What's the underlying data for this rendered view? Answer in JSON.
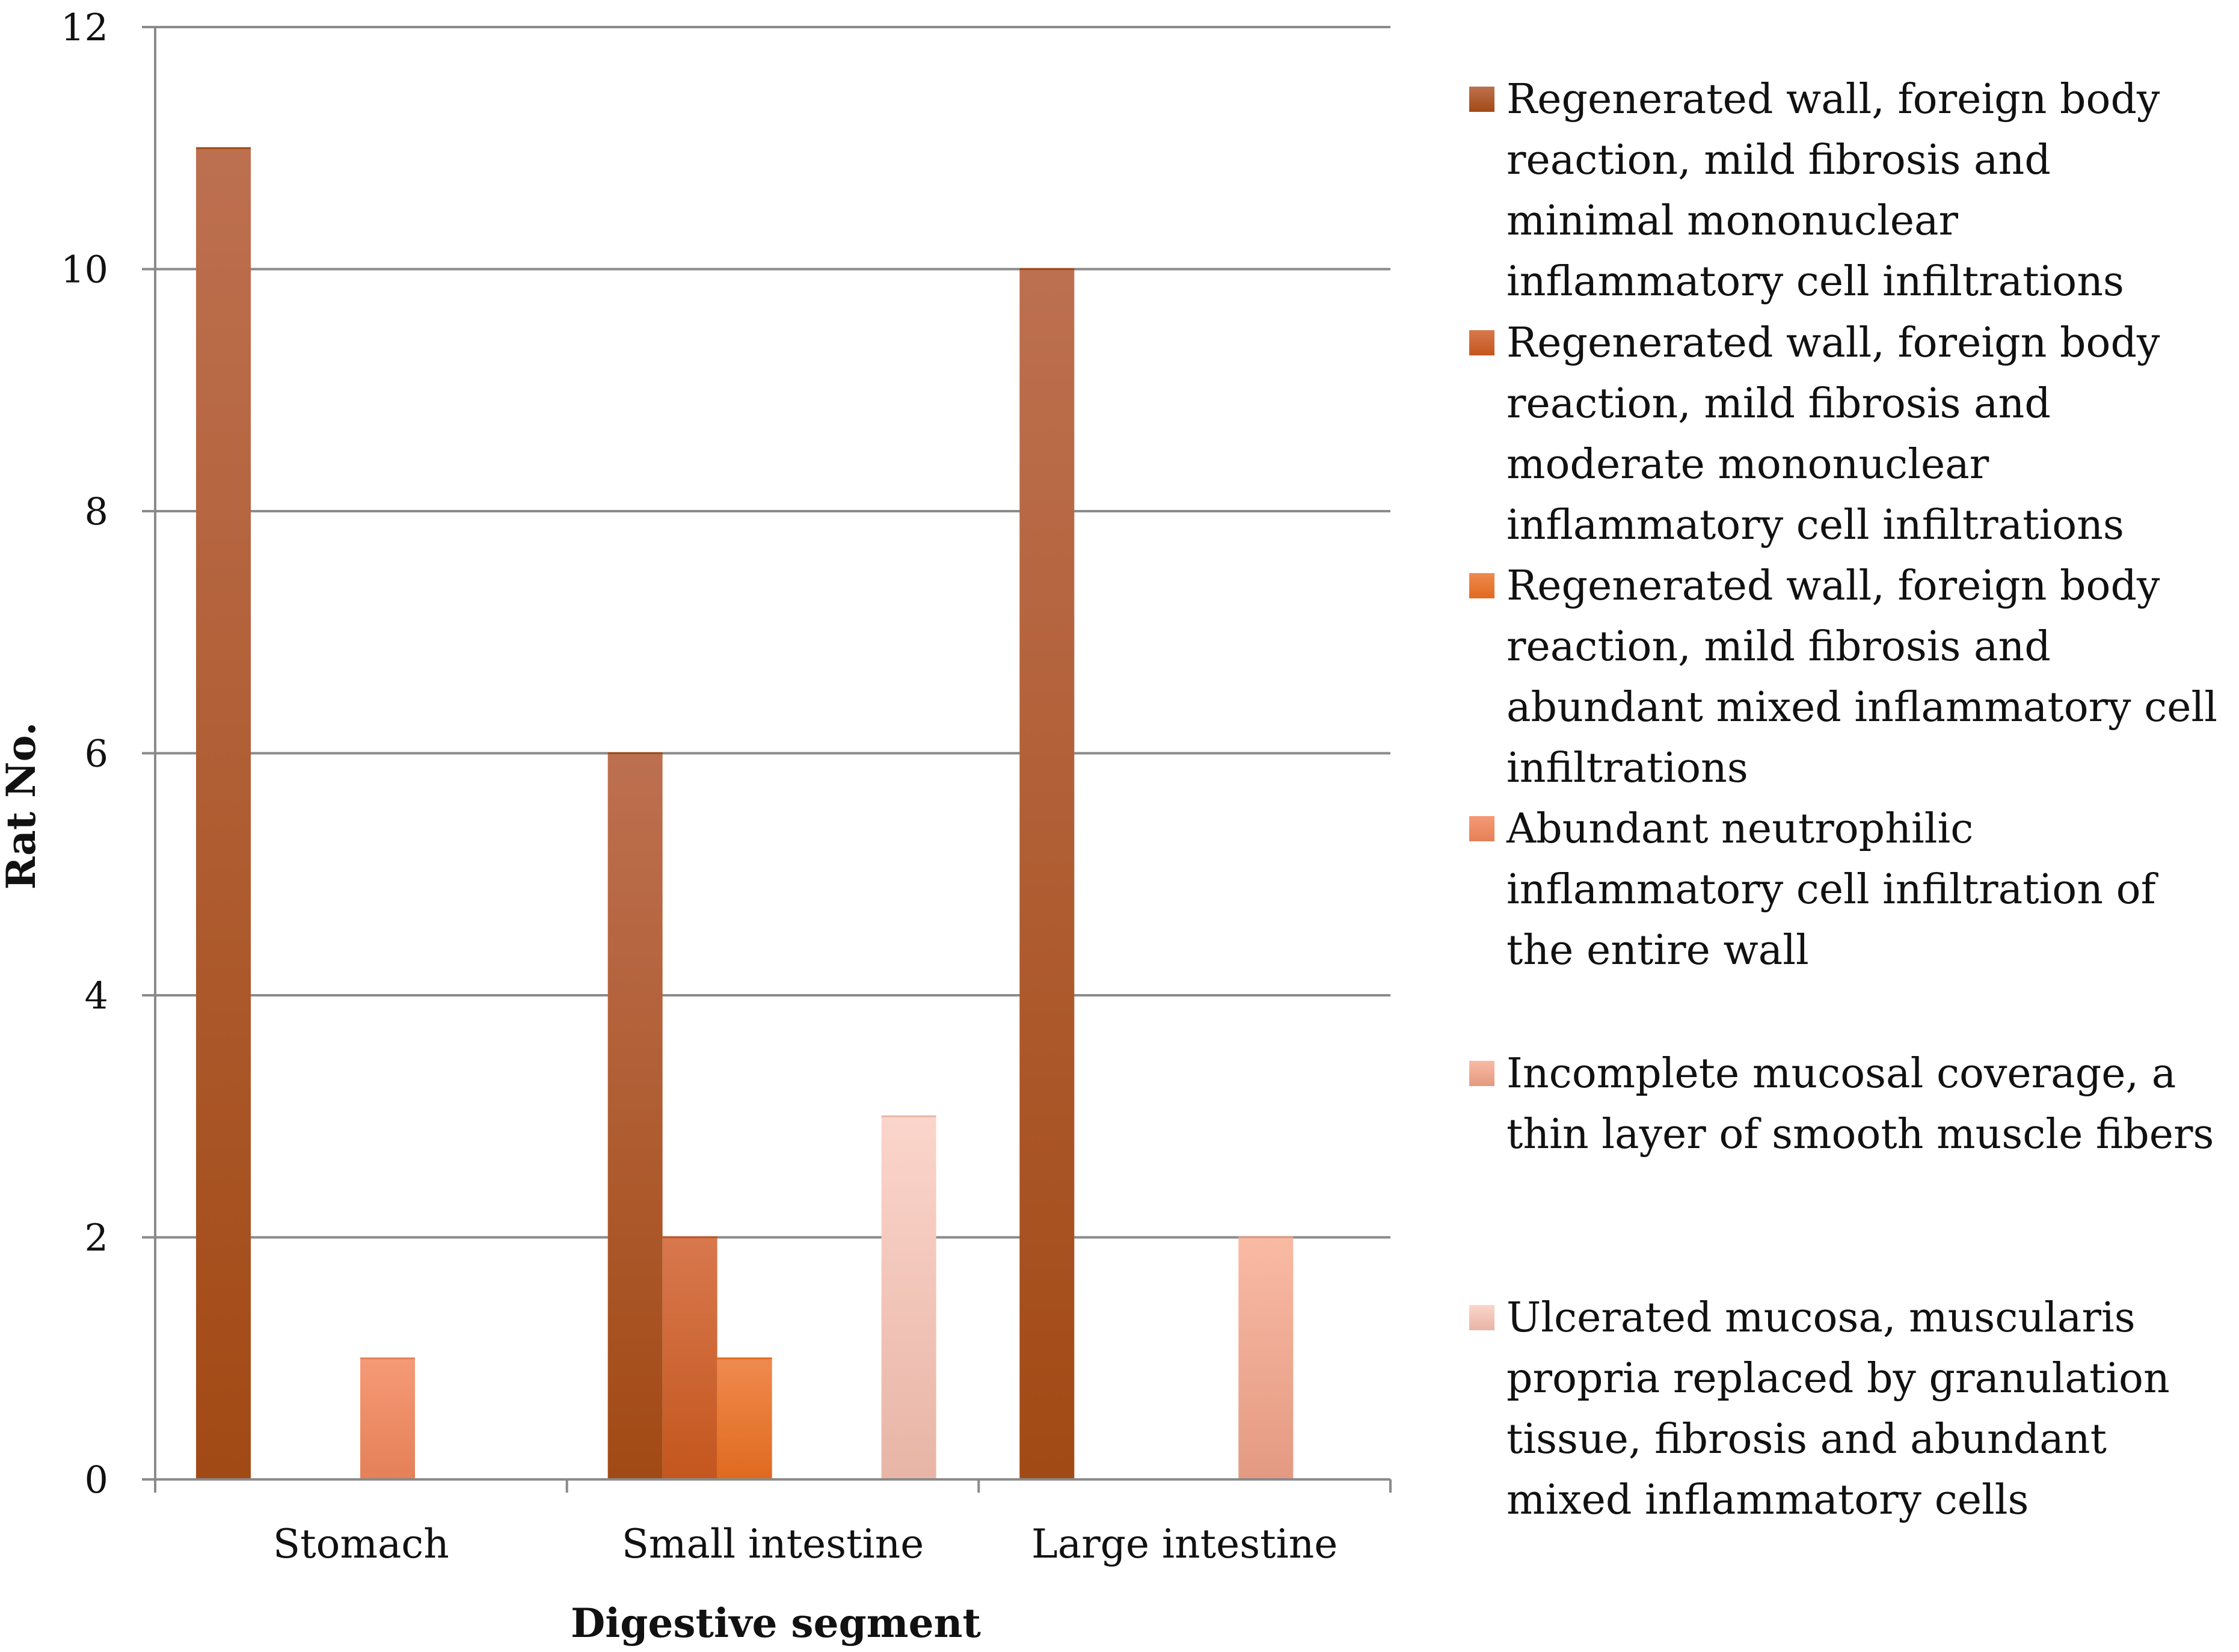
{
  "chart_data": {
    "type": "bar",
    "xlabel": "Digestive segment",
    "ylabel": "Rat No.",
    "ylim": [
      0,
      12
    ],
    "yticks": [
      "0",
      "2",
      "4",
      "6",
      "8",
      "10",
      "12"
    ],
    "categories": [
      "Stomach",
      "Small intestine",
      "Large intestine"
    ],
    "grid": true,
    "legend_position": "right",
    "series": [
      {
        "name": "Regenerated wall, foreign body reaction, mild fibrosis and minimal mononuclear inflammatory cell infiltrations",
        "values": [
          11,
          6,
          10
        ],
        "color_top": "#bd7050",
        "color_bottom": "#a24a15"
      },
      {
        "name": "Regenerated wall, foreign body reaction, mild fibrosis and moderate mononuclear inflammatory cell infiltrations",
        "values": [
          0,
          2,
          0
        ],
        "color_top": "#d8784e",
        "color_bottom": "#c4561d"
      },
      {
        "name": "Regenerated wall, foreign body reaction, mild fibrosis and abundant mixed inflammatory cell infiltrations",
        "values": [
          0,
          1,
          0
        ],
        "color_top": "#ef8a4f",
        "color_bottom": "#e06a1e"
      },
      {
        "name": "Abundant neutrophilic inflammatory cell infiltration of the entire wall",
        "values": [
          1,
          0,
          0
        ],
        "color_top": "#f59a76",
        "color_bottom": "#e58058"
      },
      {
        "name": "Incomplete mucosal coverage, a thin layer of smooth muscle fibers",
        "values": [
          0,
          0,
          2
        ],
        "color_top": "#f9baa4",
        "color_bottom": "#e49a82"
      },
      {
        "name": "Ulcerated mucosa, muscularis propria replaced by granulation tissue, fibrosis and abundant mixed inflammatory cells",
        "values": [
          0,
          3,
          0
        ],
        "color_top": "#fbd5cb",
        "color_bottom": "#e8b5a6"
      }
    ]
  }
}
